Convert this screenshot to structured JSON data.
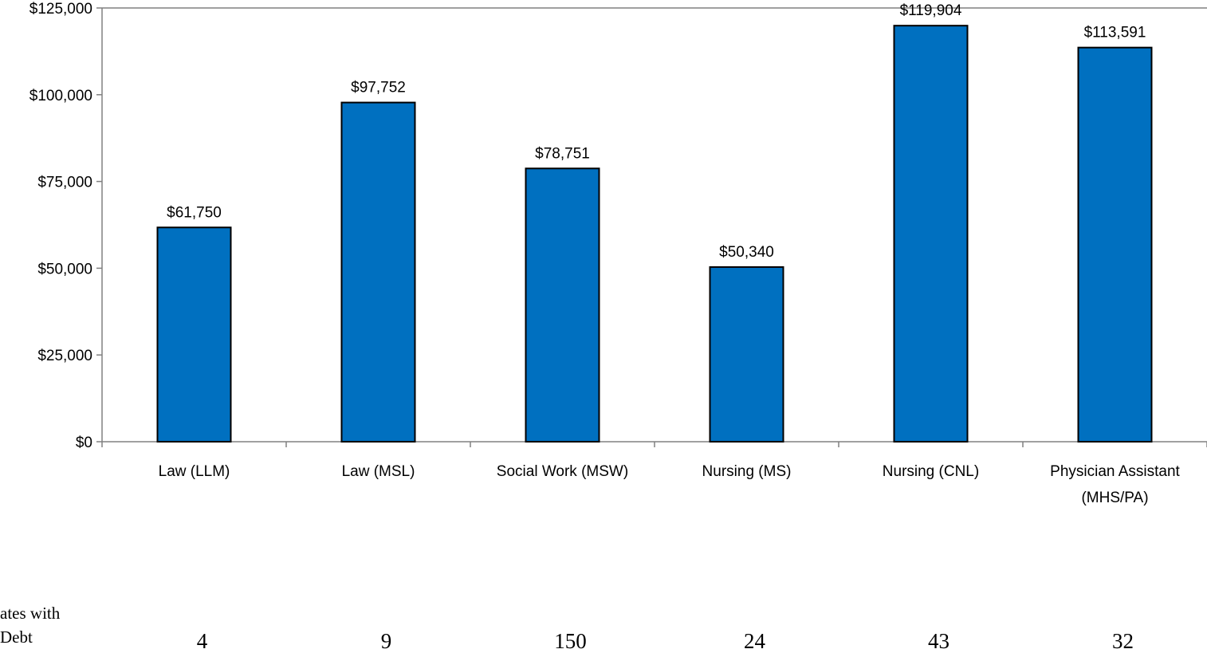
{
  "chart_data": {
    "type": "bar",
    "categories": [
      [
        "Law (LLM)"
      ],
      [
        "Law (MSL)"
      ],
      [
        "Social Work (MSW)"
      ],
      [
        "Nursing (MS)"
      ],
      [
        "Nursing (CNL)"
      ],
      [
        "Physician Assistant",
        "(MHS/PA)"
      ]
    ],
    "values": [
      61750,
      97752,
      78751,
      50340,
      119904,
      113591
    ],
    "data_labels": [
      "$61,750",
      "$97,752",
      "$78,751",
      "$50,340",
      "$119,904",
      "$113,591"
    ],
    "ylim": [
      0,
      125000
    ],
    "yticks": [
      0,
      25000,
      50000,
      75000,
      100000,
      125000
    ],
    "ytick_labels": [
      "$0",
      "$25,000",
      "$50,000",
      "$75,000",
      "$100,000",
      "$125,000"
    ],
    "bar_color": "#0070C0",
    "grid": false,
    "counts_row": {
      "label_lines": [
        "ates with",
        "Debt"
      ],
      "values": [
        "4",
        "9",
        "150",
        "24",
        "43",
        "32"
      ]
    }
  }
}
